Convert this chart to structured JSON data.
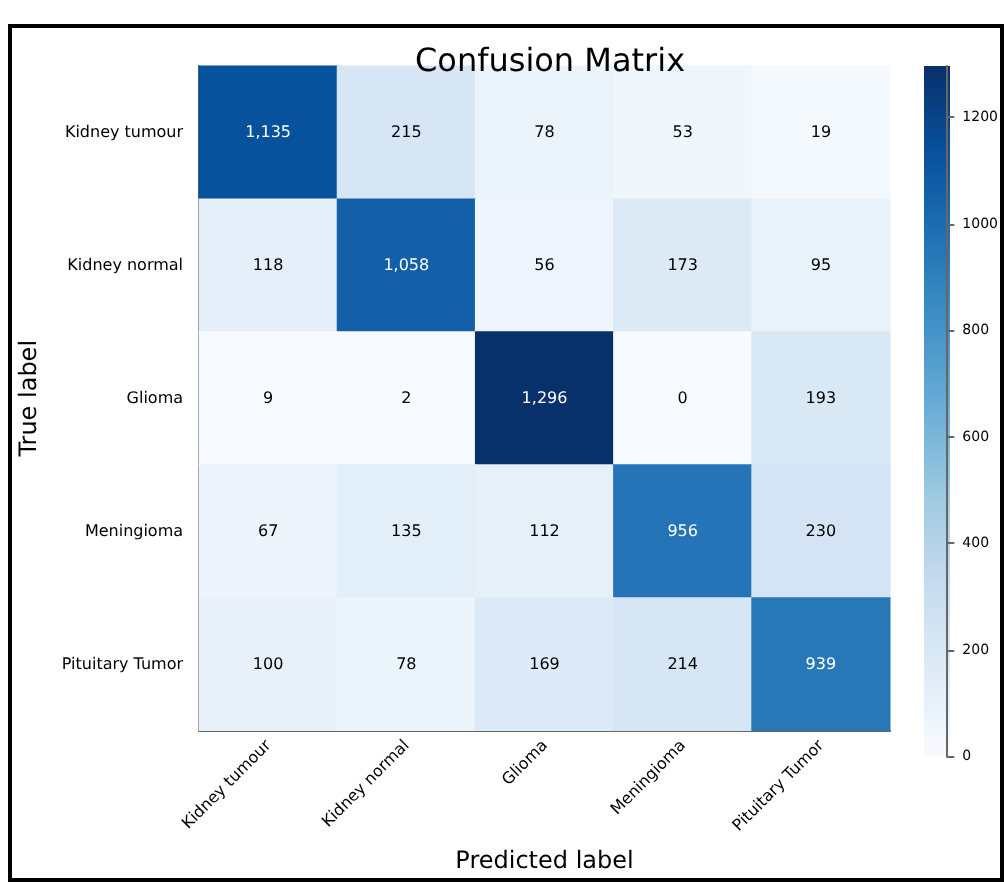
{
  "chart_data": {
    "type": "heatmap",
    "title": "Confusion Matrix",
    "xlabel": "Predicted label",
    "ylabel": "True label",
    "categories": [
      "Kidney tumour",
      "Kidney normal",
      "Glioma",
      "Meningioma",
      "Pituitary Tumor"
    ],
    "y_categories": [
      "Kidney tumour",
      "Kidney normal",
      "Glioma",
      "Meningioma",
      "Pituitary Tumor"
    ],
    "cells": [
      [
        1135,
        215,
        78,
        53,
        19
      ],
      [
        118,
        1058,
        56,
        173,
        95
      ],
      [
        9,
        2,
        1296,
        0,
        193
      ],
      [
        67,
        135,
        112,
        956,
        230
      ],
      [
        100,
        78,
        169,
        214,
        939
      ]
    ],
    "cell_labels": [
      [
        "1,135",
        "215",
        "78",
        "53",
        "19"
      ],
      [
        "118",
        "1,058",
        "56",
        "173",
        "95"
      ],
      [
        "9",
        "2",
        "1,296",
        "0",
        "193"
      ],
      [
        "67",
        "135",
        "112",
        "956",
        "230"
      ],
      [
        "100",
        "78",
        "169",
        "214",
        "939"
      ]
    ],
    "clim": [
      0,
      1296
    ],
    "cticks": [
      0,
      200,
      400,
      600,
      800,
      1000,
      1200
    ]
  }
}
